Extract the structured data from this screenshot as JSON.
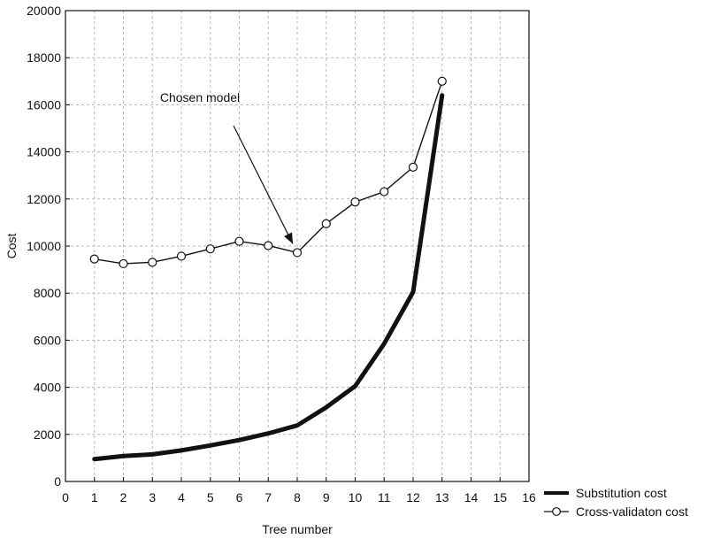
{
  "chart_data": {
    "type": "line",
    "title": "",
    "xlabel": "Tree number",
    "ylabel": "Cost",
    "xlim": [
      0,
      16
    ],
    "ylim": [
      0,
      20000
    ],
    "x_ticks": [
      0,
      1,
      2,
      3,
      4,
      5,
      6,
      7,
      8,
      9,
      10,
      11,
      12,
      13,
      14,
      15,
      16
    ],
    "y_ticks": [
      0,
      2000,
      4000,
      6000,
      8000,
      10000,
      12000,
      14000,
      16000,
      18000,
      20000
    ],
    "grid": true,
    "legend_position": "outside-bottom-right",
    "series": [
      {
        "name": "Substitution cost",
        "x": [
          1,
          2,
          3,
          4,
          5,
          6,
          7,
          8,
          9,
          10,
          11,
          12,
          13
        ],
        "values": [
          950,
          1080,
          1150,
          1320,
          1530,
          1760,
          2040,
          2380,
          3150,
          4050,
          5850,
          8050,
          16400
        ],
        "color": "#111111",
        "style": "thick-line"
      },
      {
        "name": "Cross-validaton cost",
        "x": [
          1,
          2,
          3,
          4,
          5,
          6,
          7,
          8,
          9,
          10,
          11,
          12,
          13
        ],
        "values": [
          9450,
          9250,
          9310,
          9570,
          9880,
          10200,
          10020,
          9720,
          10950,
          11870,
          12310,
          13350,
          17000
        ],
        "color": "#111111",
        "style": "line-open-circle-markers"
      }
    ],
    "annotations": [
      {
        "text": "Chosen model",
        "x": 8,
        "y": 9720
      }
    ]
  }
}
